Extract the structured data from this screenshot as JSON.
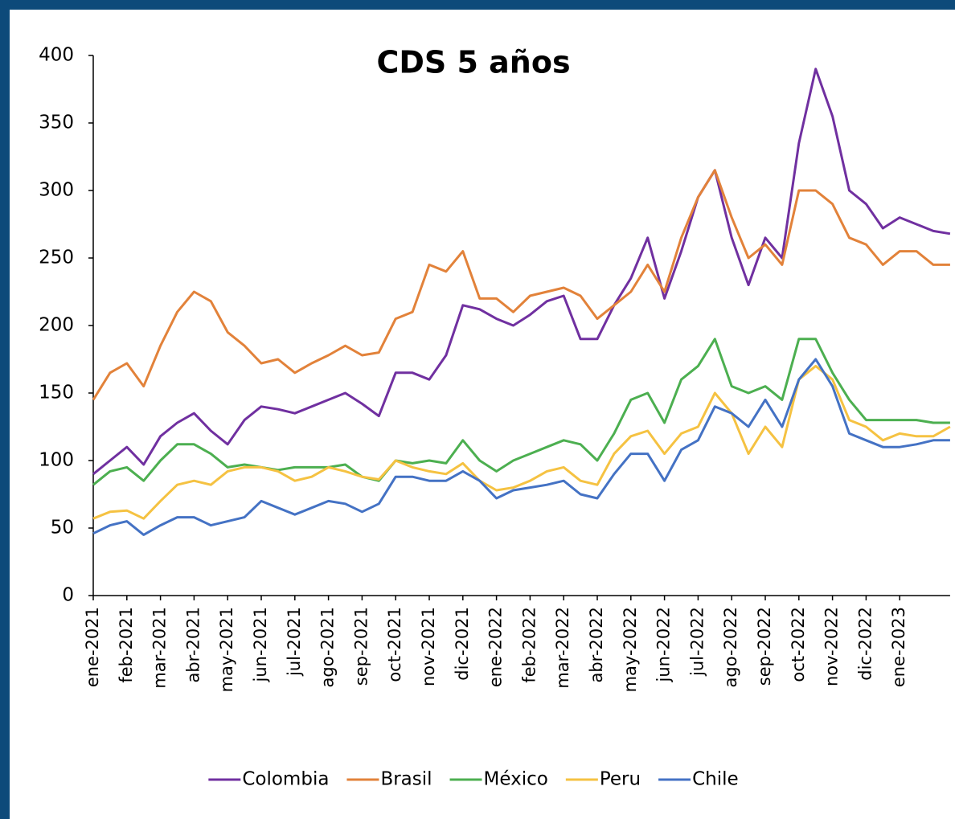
{
  "chart_data": {
    "type": "line",
    "title": "CDS 5 años",
    "x": [
      0,
      0.5,
      1,
      1.5,
      2,
      2.5,
      3,
      3.5,
      4,
      4.5,
      5,
      5.5,
      6,
      6.5,
      7,
      7.5,
      8,
      8.5,
      9,
      9.5,
      10,
      10.5,
      11,
      11.5,
      12,
      12.5,
      13,
      13.5,
      14,
      14.5,
      15,
      15.5,
      16,
      16.5,
      17,
      17.5,
      18,
      18.5,
      19,
      19.5,
      20,
      20.5,
      21,
      21.5,
      22,
      22.5,
      23,
      23.5,
      24,
      24.5,
      25,
      25.5
    ],
    "xlim": [
      0,
      25.5
    ],
    "xticks": [
      {
        "value": 0,
        "label": "ene-2021"
      },
      {
        "value": 1,
        "label": "feb-2021"
      },
      {
        "value": 2,
        "label": "mar-2021"
      },
      {
        "value": 3,
        "label": "abr-2021"
      },
      {
        "value": 4,
        "label": "may-2021"
      },
      {
        "value": 5,
        "label": "jun-2021"
      },
      {
        "value": 6,
        "label": "jul-2021"
      },
      {
        "value": 7,
        "label": "ago-2021"
      },
      {
        "value": 8,
        "label": "sep-2021"
      },
      {
        "value": 9,
        "label": "oct-2021"
      },
      {
        "value": 10,
        "label": "nov-2021"
      },
      {
        "value": 11,
        "label": "dic-2021"
      },
      {
        "value": 12,
        "label": "ene-2022"
      },
      {
        "value": 13,
        "label": "feb-2022"
      },
      {
        "value": 14,
        "label": "mar-2022"
      },
      {
        "value": 15,
        "label": "abr-2022"
      },
      {
        "value": 16,
        "label": "may-2022"
      },
      {
        "value": 17,
        "label": "jun-2022"
      },
      {
        "value": 18,
        "label": "jul-2022"
      },
      {
        "value": 19,
        "label": "ago-2022"
      },
      {
        "value": 20,
        "label": "sep-2022"
      },
      {
        "value": 21,
        "label": "oct-2022"
      },
      {
        "value": 22,
        "label": "nov-2022"
      },
      {
        "value": 23,
        "label": "dic-2022"
      },
      {
        "value": 24,
        "label": "ene-2023"
      }
    ],
    "ylim": [
      0,
      400
    ],
    "yticks": [
      0,
      50,
      100,
      150,
      200,
      250,
      300,
      350,
      400
    ],
    "legend": "bottom",
    "series": [
      {
        "name": "Colombia",
        "color": "#7030a0",
        "values": [
          90,
          100,
          110,
          97,
          118,
          128,
          135,
          122,
          112,
          130,
          140,
          138,
          135,
          140,
          145,
          150,
          142,
          133,
          165,
          165,
          160,
          178,
          215,
          212,
          205,
          200,
          208,
          218,
          222,
          190,
          190,
          215,
          235,
          265,
          220,
          255,
          295,
          315,
          265,
          230,
          265,
          250,
          335,
          390,
          355,
          300,
          290,
          272,
          280,
          275,
          270,
          268
        ]
      },
      {
        "name": "Brasil",
        "color": "#e2823a",
        "values": [
          145,
          165,
          172,
          155,
          185,
          210,
          225,
          218,
          195,
          185,
          172,
          175,
          165,
          172,
          178,
          185,
          178,
          180,
          205,
          210,
          245,
          240,
          255,
          220,
          220,
          210,
          222,
          225,
          228,
          222,
          205,
          215,
          225,
          245,
          225,
          265,
          295,
          315,
          280,
          250,
          260,
          245,
          300,
          300,
          290,
          265,
          260,
          245,
          255,
          255,
          245,
          245
        ]
      },
      {
        "name": "México",
        "color": "#4caf50",
        "values": [
          82,
          92,
          95,
          85,
          100,
          112,
          112,
          105,
          95,
          97,
          95,
          93,
          95,
          95,
          95,
          97,
          88,
          85,
          100,
          98,
          100,
          98,
          115,
          100,
          92,
          100,
          105,
          110,
          115,
          112,
          100,
          120,
          145,
          150,
          128,
          160,
          170,
          190,
          155,
          150,
          155,
          145,
          190,
          190,
          165,
          145,
          130,
          130,
          130,
          130,
          128,
          128
        ]
      },
      {
        "name": "Peru",
        "color": "#f5c242",
        "values": [
          57,
          62,
          63,
          57,
          70,
          82,
          85,
          82,
          92,
          95,
          95,
          92,
          85,
          88,
          95,
          92,
          88,
          86,
          100,
          95,
          92,
          90,
          98,
          85,
          78,
          80,
          85,
          92,
          95,
          85,
          82,
          105,
          118,
          122,
          105,
          120,
          125,
          150,
          135,
          105,
          125,
          110,
          160,
          170,
          160,
          130,
          125,
          115,
          120,
          118,
          118,
          125
        ]
      },
      {
        "name": "Chile",
        "color": "#4472c4",
        "values": [
          46,
          52,
          55,
          45,
          52,
          58,
          58,
          52,
          55,
          58,
          70,
          65,
          60,
          65,
          70,
          68,
          62,
          68,
          88,
          88,
          85,
          85,
          92,
          85,
          72,
          78,
          80,
          82,
          85,
          75,
          72,
          90,
          105,
          105,
          85,
          108,
          115,
          140,
          135,
          125,
          145,
          125,
          160,
          175,
          155,
          120,
          115,
          110,
          110,
          112,
          115,
          115
        ]
      }
    ]
  }
}
